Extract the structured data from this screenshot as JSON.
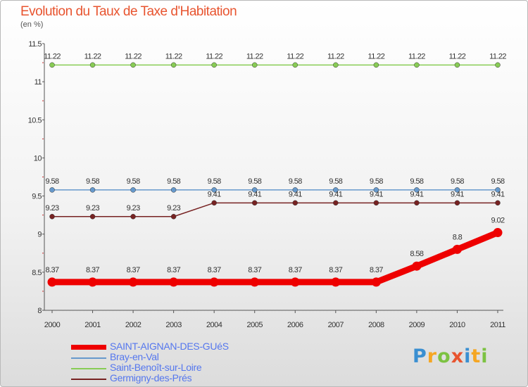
{
  "title": "Evolution du Taux de Taxe d'Habitation",
  "unit": "(en %)",
  "logo": {
    "text": "Proxiti",
    "colors": [
      "#3a8fd1",
      "#f5a623",
      "#7cc242",
      "#e8542f",
      "#3a8fd1",
      "#f5a623",
      "#7cc242"
    ]
  },
  "chart_data": {
    "type": "line",
    "title": "Evolution du Taux de Taxe d'Habitation",
    "ylabel": "(en %)",
    "ylim": [
      8,
      11.5
    ],
    "yticks": [
      "8",
      "8.5",
      "9",
      "9.5",
      "10",
      "10.5",
      "11",
      "11.5"
    ],
    "ytick_values": [
      8,
      8.5,
      9,
      9.5,
      10,
      10.5,
      11,
      11.5
    ],
    "categories": [
      "2000",
      "2001",
      "2002",
      "2003",
      "2004",
      "2005",
      "2006",
      "2007",
      "2008",
      "2009",
      "2010",
      "2011"
    ],
    "series": [
      {
        "name": "SAINT-AIGNAN-DES-GUéS",
        "color": "#ee0000",
        "bold": true,
        "values": [
          8.37,
          8.37,
          8.37,
          8.37,
          8.37,
          8.37,
          8.37,
          8.37,
          8.37,
          8.58,
          8.8,
          9.02
        ],
        "labels": [
          "8.37",
          "8.37",
          "8.37",
          "8.37",
          "8.37",
          "8.37",
          "8.37",
          "8.37",
          "8.37",
          "8.58",
          "8.8",
          "9.02"
        ]
      },
      {
        "name": "Bray-en-Val",
        "color": "#6699cc",
        "bold": false,
        "values": [
          9.58,
          9.58,
          9.58,
          9.58,
          9.58,
          9.58,
          9.58,
          9.58,
          9.58,
          9.58,
          9.58,
          9.58
        ],
        "labels": [
          "9.58",
          "9.58",
          "9.58",
          "9.58",
          "9.58",
          "9.58",
          "9.58",
          "9.58",
          "9.58",
          "9.58",
          "9.58",
          "9.58"
        ]
      },
      {
        "name": "Saint-Benoît-sur-Loire",
        "color": "#88cc55",
        "bold": false,
        "values": [
          11.22,
          11.22,
          11.22,
          11.22,
          11.22,
          11.22,
          11.22,
          11.22,
          11.22,
          11.22,
          11.22,
          11.22
        ],
        "labels": [
          "11.22",
          "11.22",
          "11.22",
          "11.22",
          "11.22",
          "11.22",
          "11.22",
          "11.22",
          "11.22",
          "11.22",
          "11.22",
          "11.22"
        ]
      },
      {
        "name": "Germigny-des-Prés",
        "color": "#772222",
        "bold": false,
        "values": [
          9.23,
          9.23,
          9.23,
          9.23,
          9.41,
          9.41,
          9.41,
          9.41,
          9.41,
          9.41,
          9.41,
          9.41
        ],
        "labels": [
          "9.23",
          "9.23",
          "9.23",
          "9.23",
          "9.41",
          "9.41",
          "9.41",
          "9.41",
          "9.41",
          "9.41",
          "9.41",
          "9.41"
        ]
      }
    ],
    "legend": "bottom-left",
    "grid": false
  }
}
